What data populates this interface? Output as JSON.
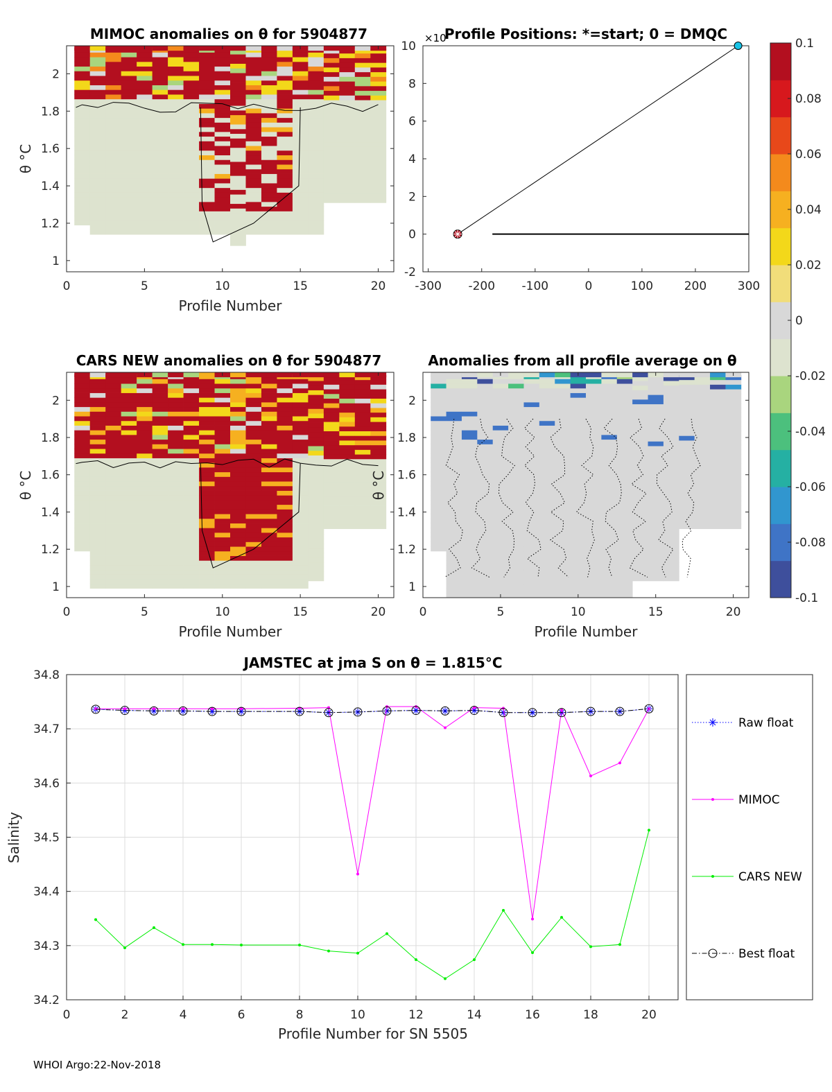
{
  "figure": {
    "footer": "WHOI Argo:22-Nov-2018"
  },
  "colorbar": {
    "ticks": [
      "0.1",
      "0.08",
      "0.06",
      "0.04",
      "0.02",
      "0",
      "-0.02",
      "-0.04",
      "-0.06",
      "-0.08",
      "-0.1"
    ],
    "range": [
      -0.1,
      0.1
    ],
    "colors": [
      "#3e4f9c",
      "#3f74c6",
      "#3196cf",
      "#25b0a3",
      "#4cc07d",
      "#a9d57e",
      "#dde3cf",
      "#d8d8d8",
      "#f1dd7a",
      "#f3d81a",
      "#f6b020",
      "#f48a1c",
      "#e8481a",
      "#d7181d",
      "#b30f1f"
    ]
  },
  "panels": {
    "mimoc": {
      "title": "MIMOC anomalies on θ  for 5904877",
      "xlabel": "Profile Number",
      "ylabel": "θ °C",
      "xticks": [
        "0",
        "5",
        "10",
        "15",
        "20"
      ],
      "yticks": [
        "1",
        "1.2",
        "1.4",
        "1.6",
        "1.8",
        "2"
      ]
    },
    "positions": {
      "title": "Profile Positions: *=start; 0 = DMQC",
      "exponent": "×10",
      "xticks": [
        "-300",
        "-200",
        "-100",
        "0",
        "100",
        "200",
        "300"
      ],
      "yticks": [
        "-2",
        "0",
        "2",
        "4",
        "6",
        "8",
        "10"
      ]
    },
    "cars": {
      "title": "CARS NEW anomalies on θ for 5904877",
      "xlabel": "Profile Number",
      "ylabel": "θ °C",
      "xticks": [
        "0",
        "5",
        "10",
        "15",
        "20"
      ],
      "yticks": [
        "1",
        "1.2",
        "1.4",
        "1.6",
        "1.8",
        "2"
      ]
    },
    "avg": {
      "title": "Anomalies from all profile average on θ",
      "xlabel": "Profile Number",
      "ylabel": "θ °C",
      "xticks": [
        "0",
        "5",
        "10",
        "15",
        "20"
      ],
      "yticks": [
        "1",
        "1.2",
        "1.4",
        "1.6",
        "1.8",
        "2"
      ]
    }
  },
  "chart_data": {
    "type": "line",
    "title": "JAMSTEC at jma S on θ = 1.815°C",
    "xlabel": "Profile Number for SN 5505",
    "ylabel": "Salinity",
    "xlim": [
      0,
      21
    ],
    "ylim": [
      34.2,
      34.8
    ],
    "xticks": [
      "0",
      "2",
      "4",
      "6",
      "8",
      "10",
      "12",
      "14",
      "16",
      "18",
      "20"
    ],
    "yticks": [
      "34.2",
      "34.3",
      "34.4",
      "34.5",
      "34.6",
      "34.7",
      "34.8"
    ],
    "grid": true,
    "legend_position": "right",
    "x": [
      1,
      2,
      3,
      4,
      5,
      6,
      8,
      9,
      10,
      11,
      12,
      13,
      14,
      15,
      16,
      17,
      18,
      19,
      20
    ],
    "series": [
      {
        "name": "Raw float",
        "color": "#0000ff",
        "style": "dotted-star",
        "values": [
          34.736,
          34.734,
          34.733,
          34.733,
          34.732,
          34.732,
          34.732,
          34.73,
          34.731,
          34.733,
          34.734,
          34.733,
          34.734,
          34.73,
          34.73,
          34.73,
          34.732,
          34.732,
          34.737
        ]
      },
      {
        "name": "MIMOC",
        "color": "#ff00ff",
        "style": "solid-dot",
        "values": [
          34.737,
          34.737,
          34.737,
          34.737,
          34.737,
          34.737,
          34.738,
          34.739,
          34.432,
          34.741,
          34.741,
          34.702,
          34.739,
          34.738,
          34.349,
          34.735,
          34.613,
          34.637,
          34.737
        ]
      },
      {
        "name": "CARS NEW",
        "color": "#00ee00",
        "style": "solid-dot",
        "values": [
          34.348,
          34.296,
          34.333,
          34.302,
          34.302,
          34.301,
          34.301,
          34.29,
          34.286,
          34.322,
          34.274,
          34.239,
          34.274,
          34.365,
          34.287,
          34.352,
          34.298,
          34.302,
          34.513
        ]
      },
      {
        "name": "Best float",
        "color": "#000000",
        "style": "dashdot-circle",
        "values": [
          34.736,
          34.734,
          34.733,
          34.733,
          34.732,
          34.732,
          34.732,
          34.73,
          34.731,
          34.733,
          34.734,
          34.733,
          34.734,
          34.73,
          34.73,
          34.73,
          34.732,
          34.732,
          34.737
        ]
      }
    ]
  },
  "positions_data": {
    "track_x": [
      -245,
      280
    ],
    "track_y": [
      0,
      10
    ],
    "start_marker": [
      -245,
      0
    ],
    "end_marker": [
      280,
      10
    ],
    "dmqc_line_x": [
      -180,
      300
    ],
    "dmqc_line_y": [
      0,
      0
    ]
  }
}
